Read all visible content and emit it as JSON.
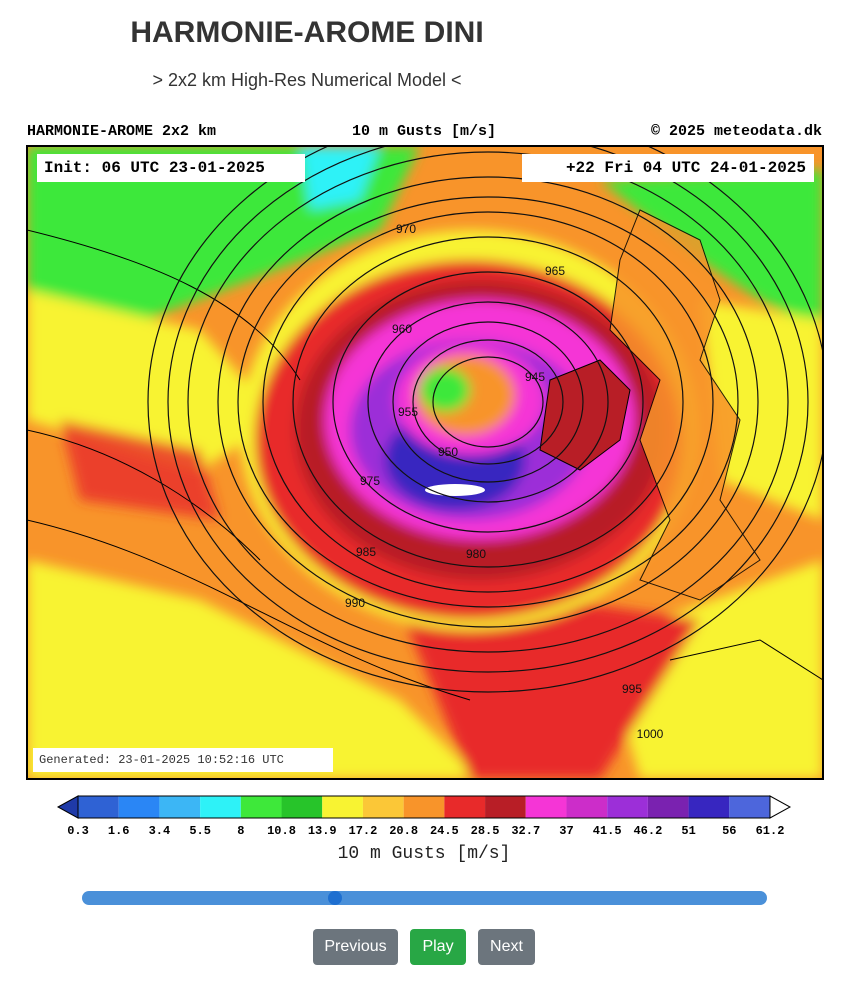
{
  "header": {
    "title": "HARMONIE-AROME DINI",
    "subtitle": "> 2x2 km High-Res Numerical Model <"
  },
  "map": {
    "model_label": "HARMONIE-AROME 2x2 km",
    "field_label": "10 m Gusts [m/s]",
    "copyright": "© 2025 meteodata.dk",
    "init": "Init: 06 UTC 23-01-2025",
    "valid": "+22 Fri 04 UTC 24-01-2025",
    "generated": "Generated: 23-01-2025 10:52:16 UTC",
    "contours": [
      "945",
      "950",
      "955",
      "960",
      "965",
      "970",
      "975",
      "980",
      "985",
      "990",
      "995",
      "1000"
    ]
  },
  "colorbar": {
    "ticks": [
      0.3,
      1.6,
      3.4,
      5.5,
      8,
      10.8,
      13.9,
      17.2,
      20.8,
      24.5,
      28.5,
      32.7,
      37,
      41.5,
      46.2,
      51,
      56,
      61.2
    ],
    "colors": [
      "#2f62d4",
      "#2a86f5",
      "#3cb6f5",
      "#2ef2f7",
      "#3ee83a",
      "#27c42a",
      "#f8f332",
      "#fbc737",
      "#f8942a",
      "#e82a2a",
      "#b81e26",
      "#f535d6",
      "#cc2dc9",
      "#9c2fd8",
      "#7a22b0",
      "#3726c0",
      "#4d66dc"
    ],
    "under_color": "#1f3aa8",
    "over_color": "#ffffff",
    "label": "10 m Gusts [m/s]"
  },
  "controls": {
    "previous": "Previous",
    "play": "Play",
    "next": "Next"
  }
}
